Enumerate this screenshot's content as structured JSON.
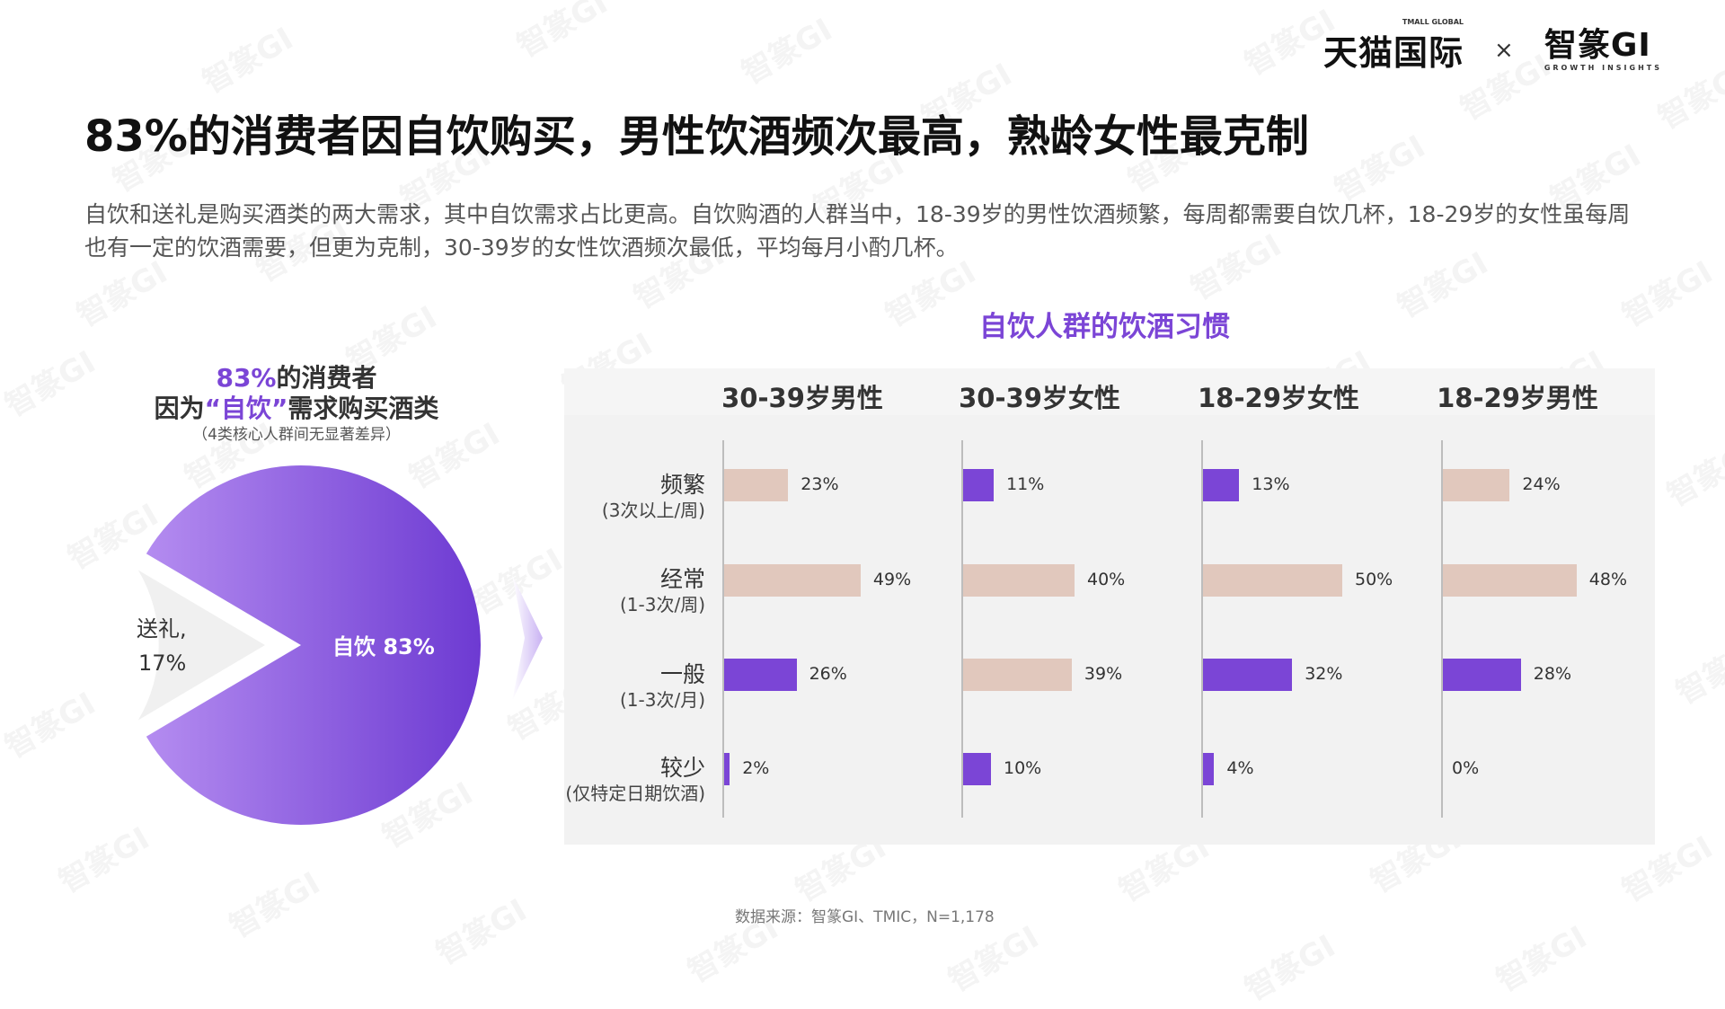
{
  "header": {
    "logo_tmall": "天猫国际",
    "logo_tmall_small": "TMALL GLOBAL",
    "logo_x": "×",
    "logo_gi": "智篆GI",
    "logo_gi_sub": "GROWTH INSIGHTS"
  },
  "title": "83%的消费者因自饮购买，男性饮酒频次最高，熟龄女性最克制",
  "description": "自饮和送礼是购买酒类的两大需求，其中自饮需求占比更高。自饮购酒的人群当中，18-39岁的男性饮酒频繁，每周都需要自饮几杯，18-29岁的女性虽每周也有一定的饮酒需要，但更为克制，30-39岁的女性饮酒频次最低，平均每月小酌几杯。",
  "pie_caption": {
    "line1_hl": "83%",
    "line1_rest": "的消费者",
    "line2_pre": "因为",
    "line2_hl": "“自饮”",
    "line2_post": "需求购买酒类",
    "line3": "（4类核心人群间无显著差异）"
  },
  "source": "数据来源：智篆GI、TMIC，N=1,178",
  "colors": {
    "purple": "#7b45d6",
    "tan": "#e1c8bd",
    "gift": "#f0f0f0"
  },
  "chart_data": [
    {
      "type": "pie",
      "title": "83%的消费者因为“自饮”需求购买酒类",
      "slices": [
        {
          "label": "自饮",
          "value": 83,
          "display": "自饮 83%"
        },
        {
          "label": "送礼",
          "value": 17,
          "display_line1": "送礼,",
          "display_line2": "17%"
        }
      ]
    },
    {
      "type": "bar",
      "title": "自饮人群的饮酒习惯",
      "categories": [
        {
          "main": "频繁",
          "sub": "(3次以上/周)"
        },
        {
          "main": "经常",
          "sub": "(1-3次/周)"
        },
        {
          "main": "一般",
          "sub": "(1-3次/月)"
        },
        {
          "main": "较少",
          "sub": "(仅特定日期饮酒)"
        }
      ],
      "series": [
        {
          "name": "30-39岁男性",
          "values": [
            23,
            49,
            26,
            2
          ],
          "highlight": [
            false,
            false,
            true,
            true
          ]
        },
        {
          "name": "30-39岁女性",
          "values": [
            11,
            40,
            39,
            10
          ],
          "highlight": [
            true,
            false,
            false,
            true
          ]
        },
        {
          "name": "18-29岁女性",
          "values": [
            13,
            50,
            32,
            4
          ],
          "highlight": [
            true,
            false,
            true,
            true
          ]
        },
        {
          "name": "18-29岁男性",
          "values": [
            24,
            48,
            28,
            0
          ],
          "highlight": [
            false,
            false,
            true,
            false
          ]
        }
      ],
      "unit": "%",
      "xlim": [
        0,
        60
      ]
    }
  ]
}
